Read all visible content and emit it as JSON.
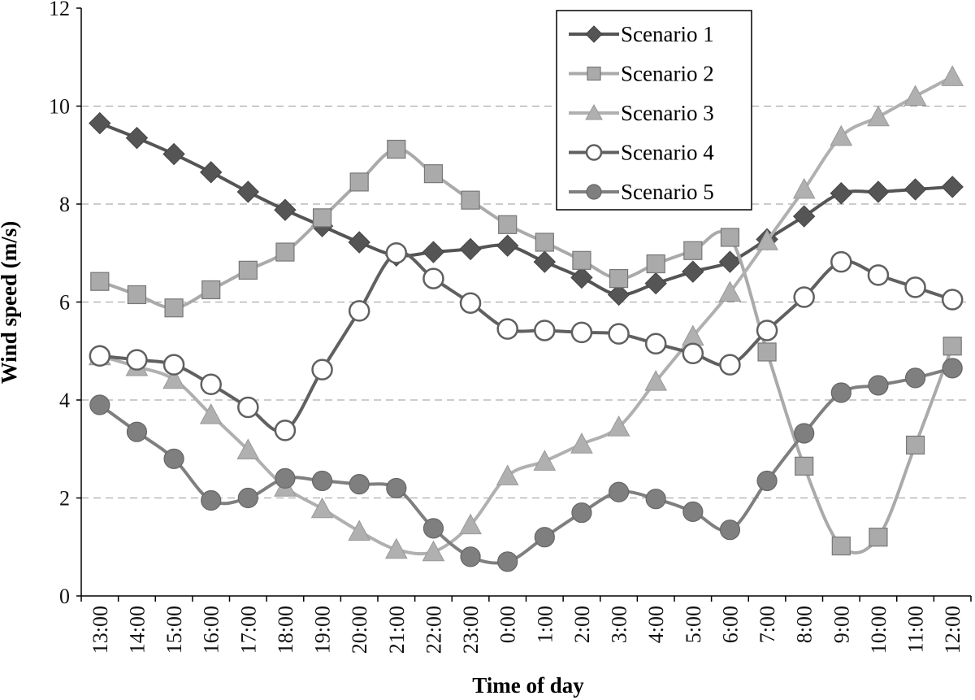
{
  "chart_data": {
    "type": "line",
    "xlabel": "Time of day",
    "ylabel": "Wind speed (m/s)",
    "ylim": [
      0,
      12
    ],
    "yticks": [
      0,
      2,
      4,
      6,
      8,
      10,
      12
    ],
    "grid": "horizontal dashed",
    "legend_position": "top-right",
    "categories": [
      "13:00",
      "14:00",
      "15:00",
      "16:00",
      "17:00",
      "18:00",
      "19:00",
      "20:00",
      "21:00",
      "22:00",
      "23:00",
      "0:00",
      "1:00",
      "2:00",
      "3:00",
      "4:00",
      "5:00",
      "6:00",
      "7:00",
      "8:00",
      "9:00",
      "10:00",
      "11:00",
      "12:00"
    ],
    "series": [
      {
        "name": "Scenario 1",
        "marker": "diamond",
        "filled": true,
        "color": "#555555",
        "values": [
          9.65,
          9.35,
          9.02,
          8.65,
          8.25,
          7.88,
          7.55,
          7.22,
          6.95,
          7.02,
          7.08,
          7.15,
          6.82,
          6.5,
          6.15,
          6.38,
          6.62,
          6.82,
          7.28,
          7.75,
          8.22,
          8.25,
          8.3,
          8.35
        ]
      },
      {
        "name": "Scenario 2",
        "marker": "square",
        "filled": true,
        "color": "#aaaaaa",
        "values": [
          6.42,
          6.15,
          5.88,
          6.25,
          6.65,
          7.02,
          7.72,
          8.45,
          9.12,
          8.62,
          8.08,
          7.58,
          7.22,
          6.85,
          6.48,
          6.78,
          7.05,
          7.32,
          4.98,
          2.65,
          1.02,
          1.2,
          3.08,
          5.1
        ]
      },
      {
        "name": "Scenario 3",
        "marker": "triangle",
        "filled": true,
        "color": "#b0b0b0",
        "values": [
          4.9,
          4.68,
          4.42,
          3.7,
          2.98,
          2.22,
          1.78,
          1.32,
          0.95,
          0.9,
          1.45,
          2.45,
          2.75,
          3.1,
          3.45,
          4.38,
          5.3,
          6.2,
          7.25,
          8.3,
          9.38,
          9.78,
          10.2,
          10.6
        ]
      },
      {
        "name": "Scenario 4",
        "marker": "circle",
        "filled": false,
        "color": "#606060",
        "values": [
          4.9,
          4.82,
          4.72,
          4.32,
          3.85,
          3.38,
          4.62,
          5.82,
          7.0,
          6.48,
          5.98,
          5.45,
          5.42,
          5.38,
          5.35,
          5.15,
          4.95,
          4.72,
          5.42,
          6.1,
          6.82,
          6.55,
          6.3,
          6.05
        ]
      },
      {
        "name": "Scenario 5",
        "marker": "circle",
        "filled": true,
        "color": "#7f7f7f",
        "values": [
          3.9,
          3.35,
          2.8,
          1.95,
          2.0,
          2.4,
          2.35,
          2.28,
          2.2,
          1.38,
          0.8,
          0.7,
          1.2,
          1.7,
          2.12,
          1.98,
          1.72,
          1.35,
          2.35,
          3.32,
          4.15,
          4.3,
          4.45,
          4.65
        ]
      }
    ]
  }
}
